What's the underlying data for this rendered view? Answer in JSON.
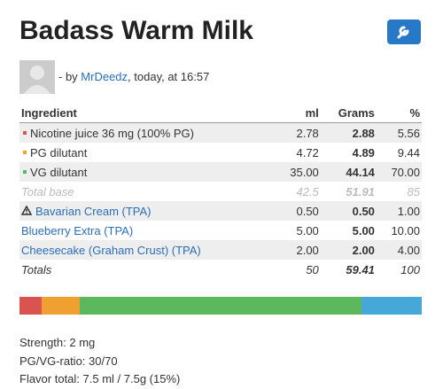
{
  "header": {
    "title": "Badass Warm Milk",
    "byline_prefix": "- by",
    "author": "MrDeedz",
    "byline_suffix": ", today, at 16:57"
  },
  "table": {
    "columns": [
      "Ingredient",
      "ml",
      "Grams",
      "%"
    ],
    "rows": [
      [
        "Nicotine juice 36 mg (100% PG)",
        "2.78",
        "2.88",
        "5.56"
      ],
      [
        "PG dilutant",
        "4.72",
        "4.89",
        "9.44"
      ],
      [
        "VG dilutant",
        "35.00",
        "44.14",
        "70.00"
      ],
      [
        "Total base",
        "42.5",
        "51.91",
        "85"
      ],
      [
        "Bavarian Cream (TPA)",
        "0.50",
        "0.50",
        "1.00"
      ],
      [
        "Blueberry Extra (TPA)",
        "5.00",
        "5.00",
        "10.00"
      ],
      [
        "Cheesecake (Graham Crust) (TPA)",
        "2.00",
        "2.00",
        "4.00"
      ],
      [
        "Totals",
        "50",
        "59.41",
        "100"
      ]
    ]
  },
  "mix_bar": {
    "segments": [
      {
        "color": "#d9534f",
        "value": 5.56
      },
      {
        "color": "#f0a030",
        "value": 9.44
      },
      {
        "color": "#5cb85c",
        "value": 70
      },
      {
        "color": "#46a8d8",
        "value": 15
      }
    ]
  },
  "summary": [
    "Strength: 2 mg",
    "PG/VG-ratio: 30/70",
    "Flavor total: 7.5 ml / 7.5g (15%)"
  ]
}
